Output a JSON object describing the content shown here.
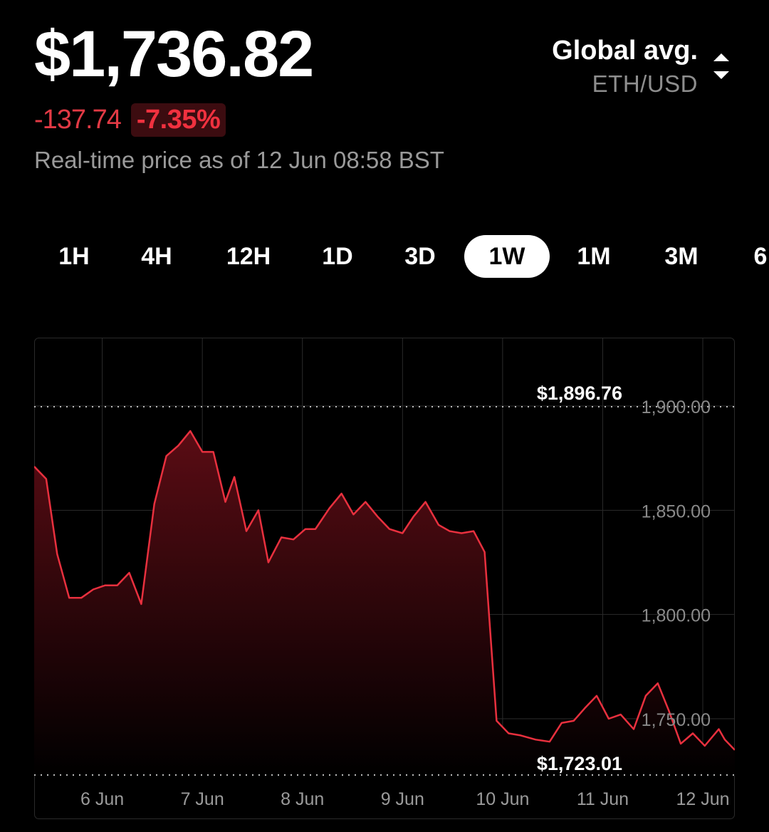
{
  "header": {
    "price": "$1,736.82",
    "change_abs": "-137.74",
    "change_pct": "-7.35%",
    "as_of": "Real-time price as of 12 Jun 08:58 BST"
  },
  "source": {
    "name": "Global avg.",
    "pair": "ETH/USD",
    "icon": "sort-up-down-icon"
  },
  "ranges": [
    {
      "label": "1H"
    },
    {
      "label": "4H"
    },
    {
      "label": "12H"
    },
    {
      "label": "1D"
    },
    {
      "label": "3D"
    },
    {
      "label": "1W",
      "active": true
    },
    {
      "label": "1M"
    },
    {
      "label": "3M"
    },
    {
      "label": "6"
    }
  ],
  "colors": {
    "line": "#e8303e",
    "fill_top": "#5a0c14",
    "positive_bg": "#3c0c10",
    "negative": "#e23a45",
    "grid": "#2b2b2b"
  },
  "chart_data": {
    "type": "area",
    "x_ticks": [
      "6 Jun",
      "7 Jun",
      "8 Jun",
      "9 Jun",
      "10 Jun",
      "11 Jun",
      "12 Jun"
    ],
    "y_ticks": [
      "1,750.00",
      "1,800.00",
      "1,850.00",
      "1,900.00"
    ],
    "high_label": "$1,896.76",
    "low_label": "$1,723.01",
    "high": 1896.76,
    "low": 1723.01,
    "ylim": [
      1723.01,
      1928
    ],
    "x_day_range": [
      5.32,
      12.32
    ],
    "series": [
      {
        "x": [
          5.32,
          5.44,
          5.55,
          5.67,
          5.79,
          5.91,
          6.03,
          6.15,
          6.27,
          6.39,
          6.52,
          6.64,
          6.76,
          6.88,
          7.0,
          7.11,
          7.23,
          7.32,
          7.44,
          7.56,
          7.66,
          7.79,
          7.91,
          8.03,
          8.13,
          8.27,
          8.39,
          8.51,
          8.63,
          8.75,
          8.87,
          9.0,
          9.11,
          9.23,
          9.36,
          9.47,
          9.59,
          9.71,
          9.82,
          9.94,
          10.06,
          10.18,
          10.33,
          10.47,
          10.59,
          10.71,
          10.82,
          10.94,
          11.06,
          11.18,
          11.31,
          11.43,
          11.55,
          11.66,
          11.78,
          11.9,
          12.02,
          12.16,
          12.22,
          12.32
        ],
        "y": [
          1871,
          1865,
          1829,
          1808,
          1808,
          1812,
          1814,
          1814,
          1820,
          1805,
          1853,
          1876,
          1881,
          1888,
          1878,
          1878,
          1854,
          1866,
          1840,
          1850,
          1825,
          1837,
          1836,
          1841,
          1841,
          1851,
          1858,
          1848,
          1854,
          1847,
          1841,
          1839,
          1847,
          1854,
          1843,
          1840,
          1839,
          1840,
          1830,
          1749,
          1743,
          1742,
          1740,
          1739,
          1748,
          1749,
          1755,
          1761,
          1750,
          1752,
          1745,
          1761,
          1767,
          1754,
          1738,
          1743,
          1737,
          1745,
          1740,
          1735
        ]
      }
    ]
  }
}
